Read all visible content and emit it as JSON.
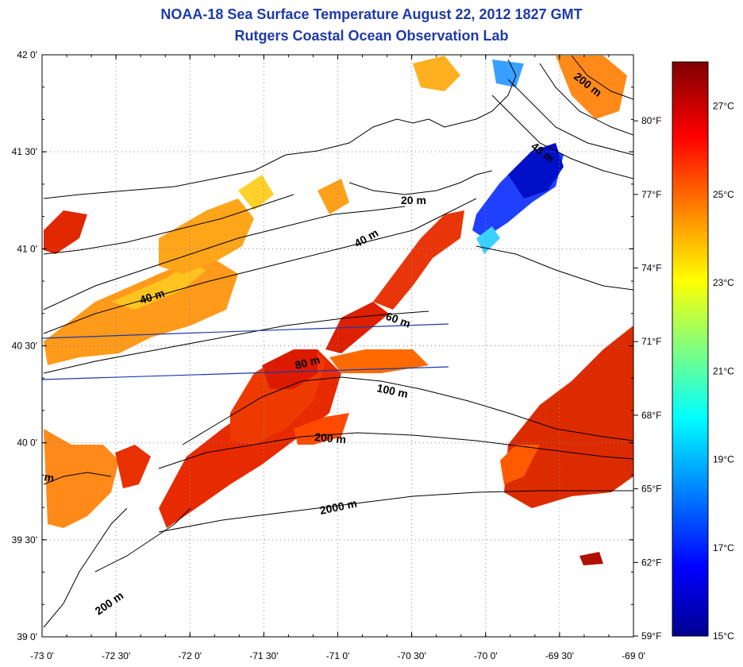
{
  "header": {
    "title": "NOAA-18 Sea Surface Temperature August 22, 2012 1827 GMT",
    "subtitle": "Rutgers Coastal Ocean Observation Lab"
  },
  "map": {
    "lon_range": [
      -73.0,
      -69.0
    ],
    "lat_range": [
      39.0,
      42.0
    ],
    "lat_ticks": [
      "42 0'",
      "41 30'",
      "41 0'",
      "40 30'",
      "40 0'",
      "39 30'",
      "39 0'"
    ],
    "lon_ticks": [
      "-73 0'",
      "-72 30'",
      "-72 0'",
      "-71 30'",
      "-71 0'",
      "-70 30'",
      "-70 0'",
      "-69 30'",
      "-69 0'"
    ],
    "grid": "dotted",
    "contour_labels": [
      "200 m",
      "40 m",
      "20 m",
      "40 m",
      "40 m",
      "60 m",
      "80 m",
      "100 m",
      "200 m",
      "m",
      "2000 m",
      "200 m"
    ]
  },
  "colorbar": {
    "min_c": 15,
    "max_c": 28,
    "celsius_labels": [
      "27°C",
      "25°C",
      "23°C",
      "21°C",
      "19°C",
      "17°C",
      "15°C"
    ],
    "fahrenheit_labels": [
      "80°F",
      "77°F",
      "74°F",
      "71°F",
      "68°F",
      "65°F",
      "62°F",
      "59°F"
    ],
    "colors": [
      "#00008f",
      "#0000ff",
      "#00ffff",
      "#ffff00",
      "#ff0000",
      "#7f0000"
    ]
  }
}
